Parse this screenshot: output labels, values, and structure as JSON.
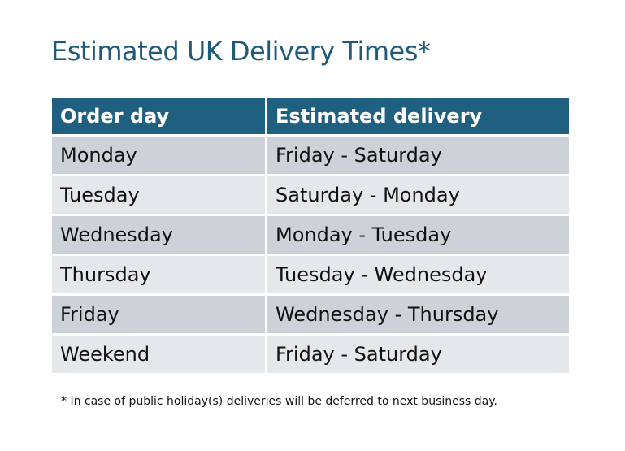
{
  "title": "Estimated UK Delivery Times*",
  "table": {
    "headers": [
      "Order day",
      "Estimated delivery"
    ],
    "rows": [
      [
        "Monday",
        "Friday - Saturday"
      ],
      [
        "Tuesday",
        "Saturday - Monday"
      ],
      [
        "Wednesday",
        "Monday - Tuesday"
      ],
      [
        "Thursday",
        "Tuesday - Wednesday"
      ],
      [
        "Friday",
        "Wednesday - Thursday"
      ],
      [
        "Weekend",
        "Friday - Saturday"
      ]
    ]
  },
  "footnote": "* In case of public holiday(s) deliveries will be deferred to next business day.",
  "colors": {
    "header": "#1f6080",
    "title": "#1f5a7a",
    "row_odd": "#cdd1d8",
    "row_even": "#e5e8eb"
  }
}
